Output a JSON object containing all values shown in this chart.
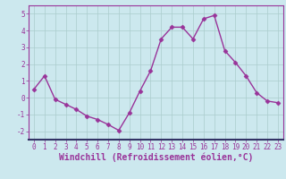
{
  "x": [
    0,
    1,
    2,
    3,
    4,
    5,
    6,
    7,
    8,
    9,
    10,
    11,
    12,
    13,
    14,
    15,
    16,
    17,
    18,
    19,
    20,
    21,
    22,
    23
  ],
  "y": [
    0.5,
    1.3,
    -0.1,
    -0.4,
    -0.7,
    -1.1,
    -1.3,
    -1.6,
    -1.95,
    -0.9,
    0.4,
    1.6,
    3.5,
    4.2,
    4.2,
    3.5,
    4.7,
    4.9,
    2.8,
    2.1,
    1.3,
    0.3,
    -0.2,
    -0.3
  ],
  "line_color": "#993399",
  "marker": "D",
  "marker_size": 2.5,
  "bg_color": "#cce8ee",
  "grid_color": "#aacccc",
  "axis_color": "#993399",
  "spine_color": "#993399",
  "xlabel": "Windchill (Refroidissement éolien,°C)",
  "xlim": [
    -0.5,
    23.5
  ],
  "ylim": [
    -2.5,
    5.5
  ],
  "yticks": [
    -2,
    -1,
    0,
    1,
    2,
    3,
    4,
    5
  ],
  "xticks": [
    0,
    1,
    2,
    3,
    4,
    5,
    6,
    7,
    8,
    9,
    10,
    11,
    12,
    13,
    14,
    15,
    16,
    17,
    18,
    19,
    20,
    21,
    22,
    23
  ],
  "tick_fontsize": 5.5,
  "xlabel_fontsize": 7,
  "linewidth": 1.0
}
